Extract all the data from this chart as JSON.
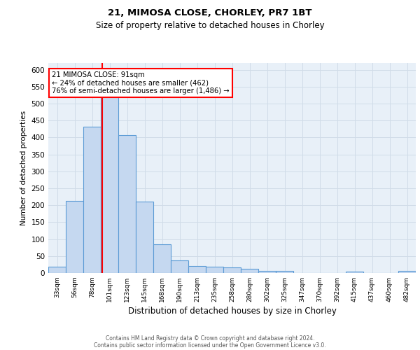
{
  "title1": "21, MIMOSA CLOSE, CHORLEY, PR7 1BT",
  "title2": "Size of property relative to detached houses in Chorley",
  "xlabel": "Distribution of detached houses by size in Chorley",
  "ylabel": "Number of detached properties",
  "categories": [
    "33sqm",
    "56sqm",
    "78sqm",
    "101sqm",
    "123sqm",
    "145sqm",
    "168sqm",
    "190sqm",
    "213sqm",
    "235sqm",
    "258sqm",
    "280sqm",
    "302sqm",
    "325sqm",
    "347sqm",
    "370sqm",
    "392sqm",
    "415sqm",
    "437sqm",
    "460sqm",
    "482sqm"
  ],
  "values": [
    18,
    212,
    432,
    530,
    408,
    210,
    85,
    37,
    20,
    19,
    17,
    12,
    6,
    6,
    0,
    0,
    0,
    5,
    0,
    0,
    6
  ],
  "bar_color": "#c5d8f0",
  "bar_edge_color": "#5b9bd5",
  "red_line_x": 2.58,
  "annotation_text": "21 MIMOSA CLOSE: 91sqm\n← 24% of detached houses are smaller (462)\n76% of semi-detached houses are larger (1,486) →",
  "annotation_box_color": "white",
  "annotation_box_edge_color": "red",
  "footer1": "Contains HM Land Registry data © Crown copyright and database right 2024.",
  "footer2": "Contains public sector information licensed under the Open Government Licence v3.0.",
  "ylim": [
    0,
    620
  ],
  "yticks": [
    0,
    50,
    100,
    150,
    200,
    250,
    300,
    350,
    400,
    450,
    500,
    550,
    600
  ],
  "grid_color": "#d0dce8",
  "bg_color": "#e8f0f8"
}
